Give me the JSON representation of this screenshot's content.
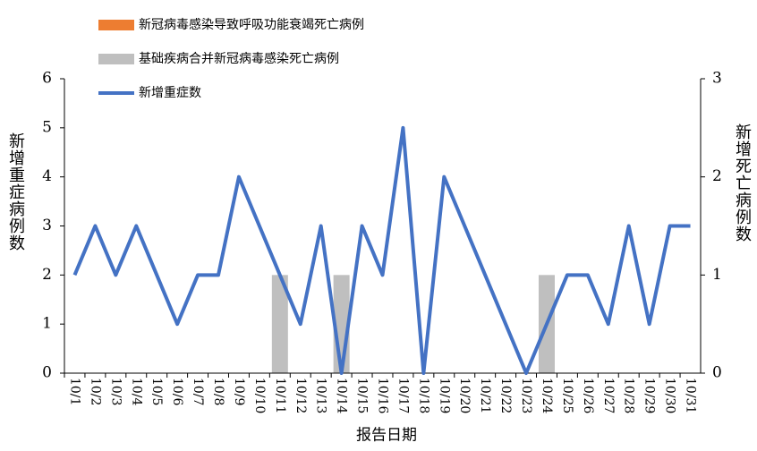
{
  "chart_data": {
    "type": "combo",
    "x_label": "报告日期",
    "y_label": "新增重症病例数",
    "y2_label": "新增死亡病例数",
    "categories": [
      "10/1",
      "10/2",
      "10/3",
      "10/4",
      "10/5",
      "10/6",
      "10/7",
      "10/8",
      "10/9",
      "10/10",
      "10/11",
      "10/12",
      "10/13",
      "10/14",
      "10/15",
      "10/16",
      "10/17",
      "10/18",
      "10/19",
      "10/20",
      "10/21",
      "10/22",
      "10/23",
      "10/24",
      "10/25",
      "10/26",
      "10/27",
      "10/28",
      "10/29",
      "10/30",
      "10/31"
    ],
    "series": [
      {
        "name": "新冠病毒感染导致呼吸功能衰竭死亡病例",
        "type": "bar",
        "axis": "y2",
        "color": "#ed7d31",
        "values": [
          0,
          0,
          0,
          0,
          0,
          0,
          0,
          0,
          0,
          0,
          0,
          0,
          0,
          0,
          0,
          0,
          0,
          0,
          0,
          0,
          0,
          0,
          0,
          0,
          0,
          0,
          0,
          0,
          0,
          0,
          0
        ]
      },
      {
        "name": "基础疾病合并新冠病毒感染死亡病例",
        "type": "bar",
        "axis": "y2",
        "color": "#bfbfbf",
        "values": [
          0,
          0,
          0,
          0,
          0,
          0,
          0,
          0,
          0,
          0,
          1,
          0,
          0,
          1,
          0,
          0,
          0,
          0,
          0,
          0,
          0,
          0,
          0,
          1,
          0,
          0,
          0,
          0,
          0,
          0,
          0
        ]
      },
      {
        "name": "新增重症数",
        "type": "line",
        "color": "#4472c4",
        "values": [
          2,
          3,
          2,
          3,
          2,
          1,
          2,
          2,
          4,
          3,
          2,
          1,
          3,
          0,
          3,
          2,
          5,
          0,
          4,
          3,
          2,
          1,
          0,
          1,
          2,
          2,
          1,
          3,
          1,
          3,
          3
        ]
      }
    ],
    "ylim": [
      0,
      6
    ],
    "yticks": [
      0,
      1,
      2,
      3,
      4,
      5,
      6
    ],
    "y2lim": [
      0,
      3
    ],
    "y2ticks": [
      0,
      1,
      2,
      3
    ]
  }
}
